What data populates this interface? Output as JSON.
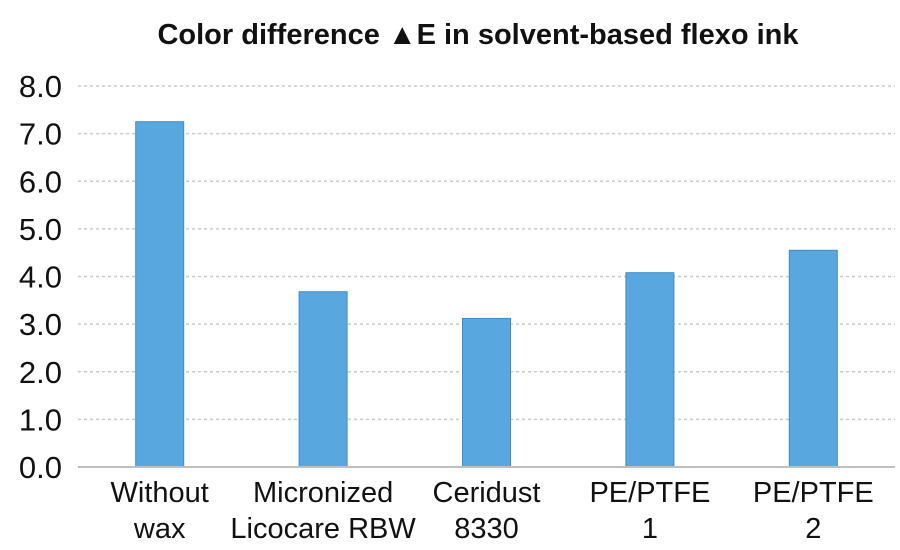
{
  "chart_data": {
    "type": "bar",
    "title": "Color difference ▲E in solvent-based flexo ink",
    "xlabel": "",
    "ylabel": "",
    "ylim": [
      0,
      8
    ],
    "yticks": [
      "0.0",
      "1.0",
      "2.0",
      "3.0",
      "4.0",
      "5.0",
      "6.0",
      "7.0",
      "8.0"
    ],
    "grid": true,
    "legend": "none",
    "bar_color": "#59a7df",
    "categories": [
      [
        "Without",
        "wax"
      ],
      [
        "Micronized",
        "Licocare RBW"
      ],
      [
        "Ceridust",
        "8330"
      ],
      [
        "PE/PTFE",
        "1"
      ],
      [
        "PE/PTFE",
        "2"
      ]
    ],
    "values": [
      7.25,
      3.68,
      3.12,
      4.08,
      4.55
    ]
  }
}
